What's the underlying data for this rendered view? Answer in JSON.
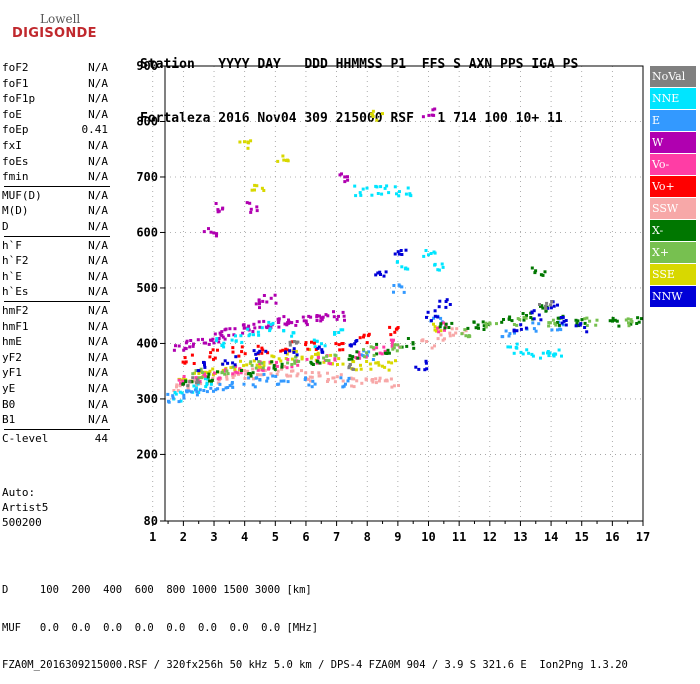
{
  "logo": {
    "line1": "Lowell",
    "line2": "DIGISONDE"
  },
  "header": {
    "line1": "Station   YYYY DAY   DDD HHMMSS P1  FFS S AXN PPS IGA PS",
    "line2": "Fortaleza 2016 Nov04 309 215000 RSF   1 714 100 10+ 11"
  },
  "params": [
    {
      "name": "foF2",
      "value": "N/A"
    },
    {
      "name": "foF1",
      "value": "N/A"
    },
    {
      "name": "foF1p",
      "value": "N/A"
    },
    {
      "name": "foE",
      "value": "N/A"
    },
    {
      "name": "foEp",
      "value": "0.41"
    },
    {
      "name": "fxI",
      "value": "N/A"
    },
    {
      "name": "foEs",
      "value": "N/A"
    },
    {
      "name": "fmin",
      "value": "N/A"
    },
    {
      "name": "MUF(D)",
      "value": "N/A"
    },
    {
      "name": "M(D)",
      "value": "N/A"
    },
    {
      "name": "D",
      "value": "N/A"
    },
    {
      "name": "h`F",
      "value": "N/A"
    },
    {
      "name": "h`F2",
      "value": "N/A"
    },
    {
      "name": "h`E",
      "value": "N/A"
    },
    {
      "name": "h`Es",
      "value": "N/A"
    },
    {
      "name": "hmF2",
      "value": "N/A"
    },
    {
      "name": "hmF1",
      "value": "N/A"
    },
    {
      "name": "hmE",
      "value": "N/A"
    },
    {
      "name": "yF2",
      "value": "N/A"
    },
    {
      "name": "yF1",
      "value": "N/A"
    },
    {
      "name": "yE",
      "value": "N/A"
    },
    {
      "name": "B0",
      "value": "N/A"
    },
    {
      "name": "B1",
      "value": "N/A"
    },
    {
      "name": "C-level",
      "value": "44"
    }
  ],
  "auto": {
    "line1": "Auto:",
    "line2": "Artist5",
    "line3": "500200"
  },
  "legend": [
    {
      "label": "NoVal",
      "color": "#808080"
    },
    {
      "label": "NNE",
      "color": "#00e5ff"
    },
    {
      "label": "E",
      "color": "#3399ff"
    },
    {
      "label": "W",
      "color": "#b000b0"
    },
    {
      "label": "Vo-",
      "color": "#ff3da5"
    },
    {
      "label": "Vo+",
      "color": "#ff0000"
    },
    {
      "label": "SSW",
      "color": "#f7a8a8"
    },
    {
      "label": "X-",
      "color": "#007700"
    },
    {
      "label": "X+",
      "color": "#77c050"
    },
    {
      "label": "SSE",
      "color": "#d8d800"
    },
    {
      "label": "NNW",
      "color": "#0000d8"
    }
  ],
  "chart_data": {
    "type": "scatter",
    "description_kind": "ionogram",
    "x_ticks": [
      1,
      2,
      3,
      4,
      5,
      6,
      7,
      8,
      9,
      10,
      11,
      12,
      13,
      14,
      15,
      16,
      17
    ],
    "y_ticks": [
      80,
      200,
      300,
      400,
      500,
      600,
      700,
      800,
      900
    ],
    "xlim": [
      1.4,
      17
    ],
    "ylim": [
      80,
      900
    ],
    "grid": "dotted",
    "legend_position": "right",
    "series": [
      {
        "name": "W",
        "color": "#b000b0",
        "points": [
          [
            1.9,
            390
          ],
          [
            2.3,
            400
          ],
          [
            2.7,
            405
          ],
          [
            3.1,
            410
          ],
          [
            3.5,
            418
          ],
          [
            3.9,
            425
          ],
          [
            4.3,
            430
          ],
          [
            4.7,
            435
          ],
          [
            5.1,
            438
          ],
          [
            5.5,
            440
          ],
          [
            5.9,
            442
          ],
          [
            6.3,
            445
          ],
          [
            6.7,
            448
          ],
          [
            7.1,
            450
          ],
          [
            3.2,
            645
          ],
          [
            4.2,
            645
          ],
          [
            4.5,
            470
          ],
          [
            4.8,
            480
          ],
          [
            2.9,
            600
          ],
          [
            10.0,
            815
          ],
          [
            3.2,
            415
          ],
          [
            5.3,
            438
          ],
          [
            7.3,
            700
          ]
        ]
      },
      {
        "name": "SSW",
        "color": "#f7a8a8",
        "points": [
          [
            1.8,
            320
          ],
          [
            2.2,
            325
          ],
          [
            2.6,
            330
          ],
          [
            3.0,
            335
          ],
          [
            3.4,
            340
          ],
          [
            3.8,
            345
          ],
          [
            4.2,
            345
          ],
          [
            4.6,
            350
          ],
          [
            5.0,
            350
          ],
          [
            5.4,
            350
          ],
          [
            5.8,
            345
          ],
          [
            6.2,
            340
          ],
          [
            6.6,
            340
          ],
          [
            7.0,
            340
          ],
          [
            7.6,
            330
          ],
          [
            8.0,
            330
          ],
          [
            8.4,
            330
          ],
          [
            8.8,
            330
          ],
          [
            10.0,
            400
          ],
          [
            10.5,
            410
          ],
          [
            11.0,
            420
          ]
        ]
      },
      {
        "name": "SSE",
        "color": "#d8d800",
        "points": [
          [
            2.0,
            340
          ],
          [
            2.5,
            345
          ],
          [
            3.0,
            350
          ],
          [
            3.5,
            355
          ],
          [
            4.0,
            360
          ],
          [
            4.5,
            365
          ],
          [
            5.0,
            370
          ],
          [
            5.5,
            380
          ],
          [
            6.0,
            380
          ],
          [
            6.5,
            375
          ],
          [
            7.0,
            370
          ],
          [
            7.7,
            360
          ],
          [
            8.2,
            360
          ],
          [
            8.7,
            360
          ],
          [
            4.0,
            760
          ],
          [
            4.4,
            680
          ],
          [
            5.3,
            730
          ],
          [
            8.3,
            810
          ],
          [
            10.2,
            430
          ]
        ]
      },
      {
        "name": "NNE",
        "color": "#00e5ff",
        "points": [
          [
            1.8,
            305
          ],
          [
            2.3,
            320
          ],
          [
            2.8,
            330
          ],
          [
            3.3,
            400
          ],
          [
            3.8,
            410
          ],
          [
            4.3,
            420
          ],
          [
            4.8,
            430
          ],
          [
            5.5,
            415
          ],
          [
            6.4,
            400
          ],
          [
            7.0,
            420
          ],
          [
            7.8,
            675
          ],
          [
            8.3,
            675
          ],
          [
            8.8,
            675
          ],
          [
            9.2,
            675
          ],
          [
            9.2,
            540
          ],
          [
            10.0,
            560
          ],
          [
            10.3,
            540
          ],
          [
            12.7,
            390
          ],
          [
            13.2,
            380
          ],
          [
            13.8,
            380
          ],
          [
            14.3,
            380
          ]
        ]
      },
      {
        "name": "E",
        "color": "#3399ff",
        "points": [
          [
            1.7,
            300
          ],
          [
            2.1,
            310
          ],
          [
            2.6,
            315
          ],
          [
            3.1,
            320
          ],
          [
            3.6,
            325
          ],
          [
            4.2,
            330
          ],
          [
            4.7,
            340
          ],
          [
            5.2,
            335
          ],
          [
            6.2,
            330
          ],
          [
            7.2,
            330
          ],
          [
            8.0,
            380
          ],
          [
            9.0,
            500
          ],
          [
            10.3,
            440
          ],
          [
            12.6,
            420
          ],
          [
            13.4,
            430
          ],
          [
            14.2,
            430
          ]
        ]
      },
      {
        "name": "Vo-",
        "color": "#ff3da5",
        "points": [
          [
            2.0,
            335
          ],
          [
            2.6,
            340
          ],
          [
            3.2,
            345
          ],
          [
            3.8,
            350
          ],
          [
            4.4,
            360
          ],
          [
            5.0,
            360
          ],
          [
            5.6,
            365
          ],
          [
            6.2,
            370
          ],
          [
            6.8,
            370
          ],
          [
            7.8,
            380
          ],
          [
            8.4,
            390
          ],
          [
            9.0,
            400
          ],
          [
            10.5,
            430
          ]
        ]
      },
      {
        "name": "Vo+",
        "color": "#ff0000",
        "points": [
          [
            2.2,
            370
          ],
          [
            3.0,
            380
          ],
          [
            3.8,
            385
          ],
          [
            4.6,
            390
          ],
          [
            5.4,
            395
          ],
          [
            6.2,
            395
          ],
          [
            7.0,
            395
          ],
          [
            8.0,
            410
          ],
          [
            8.8,
            420
          ]
        ]
      },
      {
        "name": "X-",
        "color": "#007700",
        "points": [
          [
            2.1,
            330
          ],
          [
            3.0,
            340
          ],
          [
            4.1,
            350
          ],
          [
            5.1,
            360
          ],
          [
            6.3,
            370
          ],
          [
            7.5,
            380
          ],
          [
            8.5,
            390
          ],
          [
            9.3,
            400
          ],
          [
            10.6,
            430
          ],
          [
            11.5,
            430
          ],
          [
            12.0,
            430
          ],
          [
            12.5,
            440
          ],
          [
            13.2,
            450
          ],
          [
            13.7,
            460
          ],
          [
            14.2,
            440
          ],
          [
            15.0,
            440
          ],
          [
            16.0,
            440
          ],
          [
            16.8,
            440
          ],
          [
            13.6,
            530
          ]
        ]
      },
      {
        "name": "X+",
        "color": "#77c050",
        "points": [
          [
            2.4,
            345
          ],
          [
            3.4,
            350
          ],
          [
            4.4,
            360
          ],
          [
            5.6,
            370
          ],
          [
            6.8,
            375
          ],
          [
            8.1,
            385
          ],
          [
            9.0,
            395
          ],
          [
            11.2,
            420
          ],
          [
            12.1,
            430
          ],
          [
            13.0,
            440
          ],
          [
            14.0,
            440
          ],
          [
            15.3,
            440
          ],
          [
            16.5,
            440
          ]
        ]
      },
      {
        "name": "NNW",
        "color": "#0000d8",
        "points": [
          [
            2.5,
            360
          ],
          [
            3.5,
            370
          ],
          [
            4.5,
            380
          ],
          [
            5.5,
            385
          ],
          [
            6.5,
            390
          ],
          [
            7.5,
            400
          ],
          [
            8.5,
            520
          ],
          [
            9.1,
            560
          ],
          [
            10.1,
            450
          ],
          [
            10.5,
            470
          ],
          [
            13.0,
            430
          ],
          [
            13.5,
            450
          ],
          [
            14.0,
            470
          ],
          [
            14.5,
            440
          ],
          [
            15.0,
            430
          ],
          [
            9.8,
            360
          ]
        ]
      },
      {
        "name": "NoVal",
        "color": "#808080",
        "points": [
          [
            2.3,
            330
          ],
          [
            5.6,
            400
          ],
          [
            7.4,
            360
          ],
          [
            13.8,
            470
          ]
        ]
      }
    ]
  },
  "footer": {
    "line1": "D     100  200  400  600  800 1000 1500 3000 [km]",
    "line2": "MUF   0.0  0.0  0.0  0.0  0.0  0.0  0.0  0.0 [MHz]",
    "line3": "FZA0M_2016309215000.RSF / 320fx256h 50 kHz 5.0 km / DPS-4 FZA0M 904 / 3.9 S 321.6 E  Ion2Png 1.3.20"
  }
}
